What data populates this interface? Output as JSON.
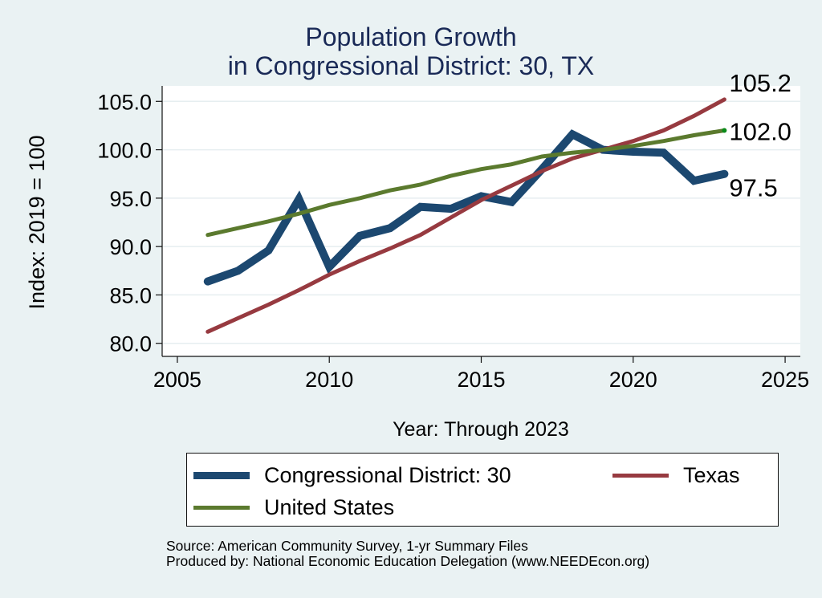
{
  "chart_data": {
    "type": "line",
    "title": [
      "Population Growth",
      "in Congressional District: 30, TX"
    ],
    "xlabel": "Year: Through 2023",
    "ylabel": "Index: 2019 = 100",
    "xlim": [
      2004.5,
      2025.5
    ],
    "ylim": [
      78.65,
      106.6
    ],
    "xticks": [
      2005,
      2010,
      2015,
      2020,
      2025
    ],
    "xtick_labels": [
      "2005",
      "2010",
      "2015",
      "2020",
      "2025"
    ],
    "yticks": [
      80,
      85,
      90,
      95,
      100,
      105
    ],
    "ytick_labels": [
      "80.0",
      "85.0",
      "90.0",
      "95.0",
      "100.0",
      "105.0"
    ],
    "grid": "horizontal",
    "x": [
      2006,
      2007,
      2008,
      2009,
      2010,
      2011,
      2012,
      2013,
      2014,
      2015,
      2016,
      2017,
      2018,
      2019,
      2020,
      2021,
      2022,
      2023
    ],
    "series": [
      {
        "name": "Congressional District: 30",
        "color": "#1c4870",
        "values": [
          86.4,
          87.5,
          89.6,
          94.9,
          87.9,
          91.1,
          91.9,
          94.1,
          93.9,
          95.2,
          94.6,
          98.0,
          101.6,
          100.0,
          99.8,
          99.7,
          96.8,
          97.5
        ],
        "end_label": "97.5"
      },
      {
        "name": "Texas",
        "color": "#973a40",
        "values": [
          81.2,
          82.6,
          84.0,
          85.5,
          87.1,
          88.5,
          89.8,
          91.2,
          93.0,
          94.8,
          96.3,
          97.8,
          99.1,
          100.0,
          100.9,
          102.0,
          103.5,
          105.2
        ],
        "end_label": "105.2"
      },
      {
        "name": "United States",
        "color": "#5b7a2e",
        "values": [
          91.2,
          91.9,
          92.6,
          93.4,
          94.3,
          95.0,
          95.8,
          96.4,
          97.3,
          98.0,
          98.5,
          99.3,
          99.7,
          100.0,
          100.4,
          100.9,
          101.5,
          102.0
        ],
        "end_label": "102.0",
        "end_marker_color": "#0a8a1a"
      }
    ],
    "legend_position": "bottom"
  },
  "legend": {
    "items": [
      {
        "label": "Congressional District: 30",
        "color": "#1c4870"
      },
      {
        "label": "Texas",
        "color": "#973a40"
      },
      {
        "label": "United States",
        "color": "#5b7a2e"
      }
    ]
  },
  "notes": {
    "source": "Source: American Community Survey, 1-yr Summary Files",
    "produced_by": "Produced by: National Economic Education Delegation (www.NEEDEcon.org)"
  },
  "colors": {
    "background": "#eaf2f3",
    "plot_background": "#ffffff",
    "grid": "#e6eef0",
    "title": "#1a2a57"
  }
}
